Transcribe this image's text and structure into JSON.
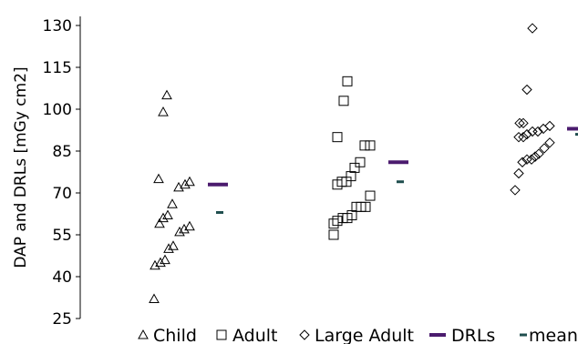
{
  "chart_data": {
    "type": "scatter",
    "title": "",
    "xlabel": "",
    "ylabel": "DAP and DRLs [mGy cm2]",
    "ylim": [
      25,
      130
    ],
    "yticks": [
      25,
      40,
      55,
      70,
      85,
      100,
      115,
      130
    ],
    "grid": false,
    "legend_position": "bottom",
    "categories": [
      "Child",
      "Adult",
      "Large Adult"
    ],
    "series": [
      {
        "name": "Child",
        "marker": "triangle",
        "category": "Child",
        "values": [
          105,
          99,
          75,
          74,
          73,
          72,
          66,
          62,
          61,
          59,
          58,
          57,
          56,
          51,
          50,
          46,
          45,
          44,
          32
        ]
      },
      {
        "name": "Adult",
        "marker": "square",
        "category": "Adult",
        "values": [
          110,
          103,
          90,
          87,
          87,
          81,
          79,
          76,
          74,
          74,
          73,
          69,
          65,
          65,
          65,
          62,
          61,
          61,
          60,
          59,
          55
        ]
      },
      {
        "name": "Large Adult",
        "marker": "diamond",
        "category": "Large Adult",
        "values": [
          129,
          107,
          95,
          95,
          94,
          93,
          92,
          92,
          91,
          90,
          90,
          88,
          86,
          84,
          83,
          82,
          82,
          81,
          77,
          71
        ]
      },
      {
        "name": "DRLs",
        "marker": "dash",
        "color": "#4b1b6e",
        "values": [
          73,
          81,
          93
        ]
      },
      {
        "name": "mean",
        "marker": "dash",
        "color": "#1f4e4e",
        "values": [
          63,
          74,
          91
        ]
      }
    ]
  }
}
